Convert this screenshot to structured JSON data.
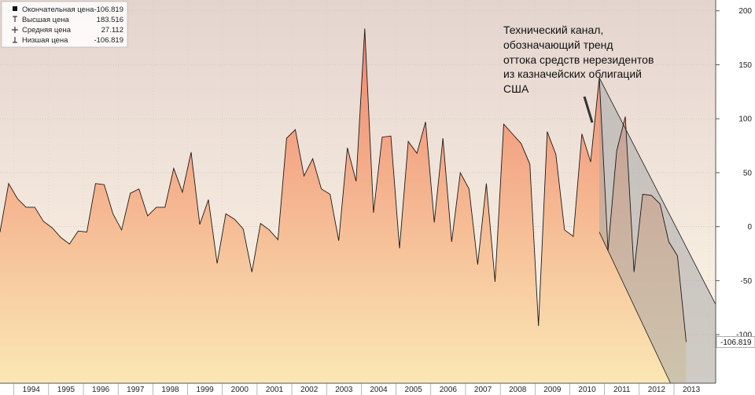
{
  "legend": {
    "items": [
      {
        "label": "Окончательная цена",
        "value": "-106.819"
      },
      {
        "label": "Высшая цена",
        "value": "183.516"
      },
      {
        "label": "Средняя цена",
        "value": "27.112"
      },
      {
        "label": "Низшая цена",
        "value": "-106.819"
      }
    ]
  },
  "annotation": {
    "lines": [
      "Технический канал,",
      "обозначающий тренд",
      "оттока средств нерезидентов",
      "из казначейских облигаций",
      "США"
    ]
  },
  "last_value_label": "-106.819",
  "colors": {
    "area_top": "#ee7f6a",
    "area_bottom": "#fbe7b4",
    "bg_top": "#e4d4ce",
    "bg_bottom": "#fff7e8",
    "line": "#1a1a1a",
    "channel_fill": "#a8a8a8"
  },
  "chart_data": {
    "type": "area",
    "title": "",
    "xlabel": "",
    "ylabel": "",
    "ylim": [
      -145,
      210
    ],
    "xlim": [
      1993.6,
      2014.2
    ],
    "y_ticks": [
      "200",
      "150",
      "100",
      "50",
      "0",
      "-50",
      "-100"
    ],
    "y_tick_values": [
      200,
      150,
      100,
      50,
      0,
      -50,
      -100
    ],
    "x_ticks": [
      "1994",
      "1995",
      "1996",
      "1997",
      "1998",
      "1999",
      "2000",
      "2001",
      "2002",
      "2003",
      "2004",
      "2005",
      "2006",
      "2007",
      "2008",
      "2009",
      "2010",
      "2011",
      "2012",
      "2013"
    ],
    "grid": true,
    "legend_position": "top-left",
    "series": [
      {
        "values": [
          [
            1993.6,
            -5
          ],
          [
            1993.85,
            40
          ],
          [
            1994.1,
            26
          ],
          [
            1994.35,
            18
          ],
          [
            1994.6,
            18
          ],
          [
            1994.85,
            5
          ],
          [
            1995.1,
            -1
          ],
          [
            1995.35,
            -10
          ],
          [
            1995.6,
            -16
          ],
          [
            1995.85,
            -4
          ],
          [
            1996.1,
            -5
          ],
          [
            1996.35,
            40
          ],
          [
            1996.6,
            39
          ],
          [
            1996.85,
            12
          ],
          [
            1997.1,
            -3
          ],
          [
            1997.35,
            31
          ],
          [
            1997.6,
            35
          ],
          [
            1997.85,
            10
          ],
          [
            1998.1,
            18
          ],
          [
            1998.35,
            18
          ],
          [
            1998.6,
            54
          ],
          [
            1998.85,
            32
          ],
          [
            1999.1,
            69
          ],
          [
            1999.35,
            2
          ],
          [
            1999.6,
            25
          ],
          [
            1999.85,
            -34
          ],
          [
            2000.1,
            12
          ],
          [
            2000.35,
            7
          ],
          [
            2000.6,
            -2
          ],
          [
            2000.85,
            -42
          ],
          [
            2001.1,
            3
          ],
          [
            2001.35,
            -3
          ],
          [
            2001.6,
            -12
          ],
          [
            2001.85,
            82
          ],
          [
            2002.1,
            90
          ],
          [
            2002.35,
            47
          ],
          [
            2002.6,
            63
          ],
          [
            2002.85,
            35
          ],
          [
            2003.1,
            30
          ],
          [
            2003.35,
            -13
          ],
          [
            2003.6,
            73
          ],
          [
            2003.85,
            42
          ],
          [
            2004.1,
            183.5
          ],
          [
            2004.35,
            13
          ],
          [
            2004.6,
            83
          ],
          [
            2004.85,
            84
          ],
          [
            2005.1,
            -20
          ],
          [
            2005.35,
            79
          ],
          [
            2005.6,
            68
          ],
          [
            2005.85,
            97
          ],
          [
            2006.1,
            4
          ],
          [
            2006.35,
            82
          ],
          [
            2006.6,
            -14
          ],
          [
            2006.85,
            50
          ],
          [
            2007.1,
            35
          ],
          [
            2007.35,
            -35
          ],
          [
            2007.6,
            40
          ],
          [
            2007.85,
            -51
          ],
          [
            2008.1,
            95
          ],
          [
            2008.35,
            86
          ],
          [
            2008.6,
            77
          ],
          [
            2008.85,
            58
          ],
          [
            2009.1,
            -92
          ],
          [
            2009.35,
            88
          ],
          [
            2009.6,
            67
          ],
          [
            2009.85,
            -3
          ],
          [
            2010.1,
            -9
          ],
          [
            2010.35,
            86
          ],
          [
            2010.6,
            60
          ],
          [
            2010.85,
            138
          ],
          [
            2011.1,
            -22
          ],
          [
            2011.35,
            70
          ],
          [
            2011.6,
            102
          ],
          [
            2011.85,
            -42
          ],
          [
            2012.1,
            30
          ],
          [
            2012.35,
            29
          ],
          [
            2012.6,
            21
          ],
          [
            2012.85,
            -14
          ],
          [
            2013.1,
            -27
          ],
          [
            2013.35,
            -106.819
          ]
        ]
      }
    ],
    "channel": {
      "upper": [
        [
          2010.85,
          138
        ],
        [
          2014.2,
          -72
        ]
      ],
      "lower": [
        [
          2010.85,
          -5
        ],
        [
          2012.9,
          -145
        ]
      ]
    }
  }
}
